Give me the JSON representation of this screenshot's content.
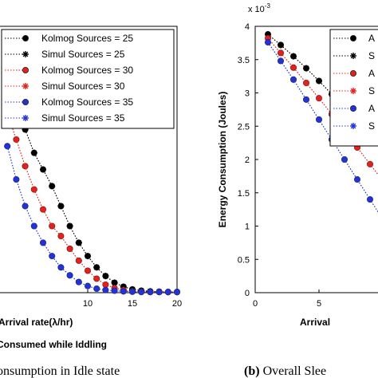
{
  "chart_data": [
    {
      "type": "line",
      "title": "",
      "xlabel": "Arrival rate(λ/hr)",
      "ylabel": "",
      "subtitle": "Consumed while Iddling",
      "caption": "onsumption in Idle state",
      "xlim": [
        0,
        20
      ],
      "ylim": [
        0,
        4
      ],
      "x_ticks": [
        "10",
        "15",
        "20"
      ],
      "x": [
        1,
        2,
        3,
        4,
        5,
        6,
        7,
        8,
        9,
        10,
        11,
        12,
        13,
        14,
        15,
        16,
        17,
        18,
        19,
        20
      ],
      "legend": "top-right",
      "series": [
        {
          "name": "Kolmog Sources = 25",
          "marker": "circle",
          "color": "#000000",
          "values": [
            3.2,
            2.8,
            2.45,
            2.1,
            1.85,
            1.6,
            1.3,
            1.0,
            0.75,
            0.55,
            0.38,
            0.25,
            0.15,
            0.09,
            0.05,
            0.03,
            0.02,
            0.015,
            0.01,
            0.01
          ]
        },
        {
          "name": "Simul Sources = 25",
          "marker": "star",
          "color": "#000000",
          "values": [
            3.2,
            2.8,
            2.45,
            2.1,
            1.85,
            1.6,
            1.3,
            1.0,
            0.75,
            0.55,
            0.38,
            0.25,
            0.15,
            0.09,
            0.05,
            0.03,
            0.02,
            0.015,
            0.01,
            0.01
          ]
        },
        {
          "name": "Kolmog Sources = 30",
          "marker": "circle",
          "color": "#e8201c",
          "values": [
            2.7,
            2.3,
            1.9,
            1.55,
            1.25,
            1.0,
            0.85,
            0.66,
            0.48,
            0.33,
            0.21,
            0.12,
            0.07,
            0.04,
            0.02,
            0.015,
            0.01,
            0.01,
            0.01,
            0.01
          ]
        },
        {
          "name": "Simul Sources = 30",
          "marker": "star",
          "color": "#e8201c",
          "values": [
            2.7,
            2.3,
            1.9,
            1.55,
            1.25,
            1.0,
            0.85,
            0.66,
            0.48,
            0.33,
            0.21,
            0.12,
            0.07,
            0.04,
            0.02,
            0.015,
            0.01,
            0.01,
            0.01,
            0.01
          ]
        },
        {
          "name": "Kolmog Sources = 35",
          "marker": "circle",
          "color": "#2233dd",
          "values": [
            2.2,
            1.7,
            1.3,
            1.0,
            0.75,
            0.55,
            0.38,
            0.26,
            0.16,
            0.1,
            0.06,
            0.04,
            0.03,
            0.02,
            0.015,
            0.01,
            0.01,
            0.01,
            0.01,
            0.01
          ]
        },
        {
          "name": "Simul Sources = 35",
          "marker": "star",
          "color": "#2233dd",
          "values": [
            2.2,
            1.7,
            1.3,
            1.0,
            0.75,
            0.55,
            0.38,
            0.26,
            0.16,
            0.1,
            0.06,
            0.04,
            0.03,
            0.02,
            0.015,
            0.01,
            0.01,
            0.01,
            0.01,
            0.01
          ]
        }
      ]
    },
    {
      "type": "line",
      "title": "",
      "xlabel": "Arrival",
      "ylabel": "Energy Consumption (Joules)",
      "y_exponent": "x 10",
      "y_exponent_power": "-3",
      "caption_label": "(b)",
      "caption": "Overall Slee",
      "xlim": [
        0,
        20
      ],
      "ylim": [
        0,
        4
      ],
      "x_ticks": [
        "0",
        "5"
      ],
      "y_ticks": [
        "0",
        "0.5",
        "1",
        "1.5",
        "2",
        "2.5",
        "3",
        "3.5",
        "4"
      ],
      "x": [
        1,
        2,
        3,
        4,
        5,
        6,
        7,
        8,
        9,
        10
      ],
      "legend": "top-right",
      "series": [
        {
          "name": "A",
          "marker": "circle",
          "color": "#000000",
          "values": [
            3.88,
            3.72,
            3.55,
            3.37,
            3.18,
            2.98,
            2.78,
            2.57,
            2.36,
            2.15
          ]
        },
        {
          "name": "S",
          "marker": "star",
          "color": "#000000",
          "values": [
            3.88,
            3.72,
            3.55,
            3.37,
            3.18,
            2.98,
            2.78,
            2.57,
            2.36,
            2.15
          ]
        },
        {
          "name": "A",
          "marker": "circle",
          "color": "#e8201c",
          "values": [
            3.82,
            3.6,
            3.38,
            3.15,
            2.92,
            2.68,
            2.43,
            2.18,
            1.93,
            1.68
          ]
        },
        {
          "name": "S",
          "marker": "star",
          "color": "#e8201c",
          "values": [
            3.82,
            3.6,
            3.38,
            3.15,
            2.92,
            2.68,
            2.43,
            2.18,
            1.93,
            1.68
          ]
        },
        {
          "name": "A",
          "marker": "circle",
          "color": "#2233dd",
          "values": [
            3.76,
            3.48,
            3.2,
            2.9,
            2.6,
            2.3,
            2.0,
            1.7,
            1.4,
            1.1
          ]
        },
        {
          "name": "S",
          "marker": "star",
          "color": "#2233dd",
          "values": [
            3.76,
            3.48,
            3.2,
            2.9,
            2.6,
            2.3,
            2.0,
            1.7,
            1.4,
            1.1
          ]
        }
      ]
    }
  ]
}
